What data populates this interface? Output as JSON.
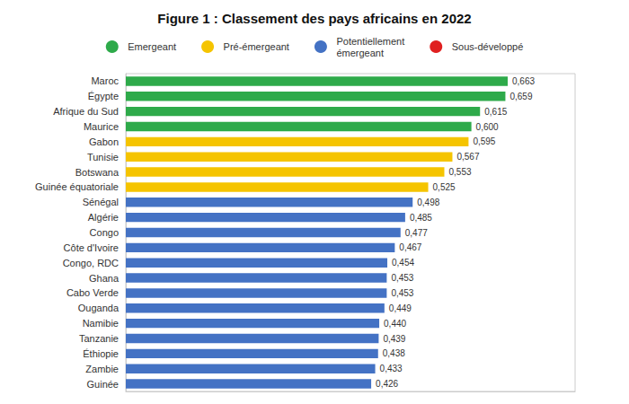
{
  "chart_data": {
    "type": "bar",
    "orientation": "horizontal",
    "title": "Figure 1 : Classement des pays africains en 2022",
    "categories": [
      "Maroc",
      "Égypte",
      "Afrique du Sud",
      "Maurice",
      "Gabon",
      "Tunisie",
      "Botswana",
      "Guinée équatoriale",
      "Sénégal",
      "Algérie",
      "Congo",
      "Côte d'Ivoire",
      "Congo, RDC",
      "Ghana",
      "Cabo Verde",
      "Ouganda",
      "Namibie",
      "Tanzanie",
      "Éthiopie",
      "Zambie",
      "Guinée"
    ],
    "series": [
      {
        "name": "Emergeant",
        "color": "#2eaa4a",
        "values": [
          0.663,
          0.659,
          0.615,
          0.6,
          null,
          null,
          null,
          null,
          null,
          null,
          null,
          null,
          null,
          null,
          null,
          null,
          null,
          null,
          null,
          null,
          null
        ],
        "value_labels": [
          "0,663",
          "0,659",
          "0,615",
          "0,600",
          null,
          null,
          null,
          null,
          null,
          null,
          null,
          null,
          null,
          null,
          null,
          null,
          null,
          null,
          null,
          null,
          null
        ]
      },
      {
        "name": "Pré-émergeant",
        "color": "#f5c400",
        "values": [
          null,
          null,
          null,
          null,
          0.595,
          0.567,
          0.553,
          0.525,
          null,
          null,
          null,
          null,
          null,
          null,
          null,
          null,
          null,
          null,
          null,
          null,
          null
        ],
        "value_labels": [
          null,
          null,
          null,
          null,
          "0,595",
          "0,567",
          "0,553",
          "0,525",
          null,
          null,
          null,
          null,
          null,
          null,
          null,
          null,
          null,
          null,
          null,
          null,
          null
        ]
      },
      {
        "name": "Potentiellement\némergeant",
        "color": "#4472c4",
        "values": [
          null,
          null,
          null,
          null,
          null,
          null,
          null,
          null,
          0.498,
          0.485,
          0.477,
          0.467,
          0.454,
          0.453,
          0.453,
          0.449,
          0.44,
          0.439,
          0.438,
          0.433,
          0.426
        ],
        "value_labels": [
          null,
          null,
          null,
          null,
          null,
          null,
          null,
          null,
          "0,498",
          "0,485",
          "0,477",
          "0,467",
          "0,454",
          "0,453",
          "0,453",
          "0,449",
          "0,440",
          "0,439",
          "0,438",
          "0,433",
          "0,426"
        ]
      },
      {
        "name": "Sous-développé",
        "color": "#e02020",
        "values": [
          null,
          null,
          null,
          null,
          null,
          null,
          null,
          null,
          null,
          null,
          null,
          null,
          null,
          null,
          null,
          null,
          null,
          null,
          null,
          null,
          null
        ]
      }
    ],
    "xlim": [
      0,
      0.78
    ],
    "data_labels": true,
    "tick_labels": "y",
    "grid": false,
    "legend": "top"
  }
}
